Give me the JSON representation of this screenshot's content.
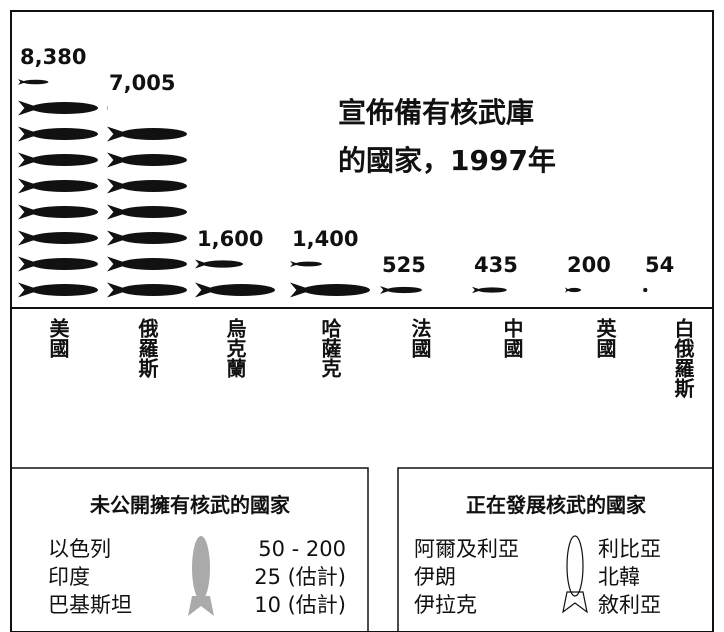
{
  "chart_data": {
    "type": "pictogram",
    "title": [
      "宣佈備有核武庫",
      "的國家，1997年"
    ],
    "categories": [
      "美國",
      "俄羅斯",
      "烏克蘭",
      "哈薩克",
      "法國",
      "中國",
      "英國",
      "白俄羅斯"
    ],
    "values": [
      8380,
      7005,
      1600,
      1400,
      525,
      435,
      200,
      54
    ],
    "value_labels": [
      "8,380",
      "7,005",
      "1,600",
      "1,400",
      "525",
      "435",
      "200",
      "54"
    ],
    "color": "#111111"
  },
  "undeclared": {
    "title": "未公開擁有核武的國家",
    "countries": [
      "以色列",
      "印度",
      "巴基斯坦"
    ],
    "estimates": [
      "50 - 200",
      "25 (估計)",
      "10 (估計)"
    ]
  },
  "developing": {
    "title": "正在發展核武的國家",
    "left": [
      "阿爾及利亞",
      "伊朗",
      "伊拉克"
    ],
    "right": [
      "利比亞",
      "北韓",
      "敘利亞"
    ]
  }
}
